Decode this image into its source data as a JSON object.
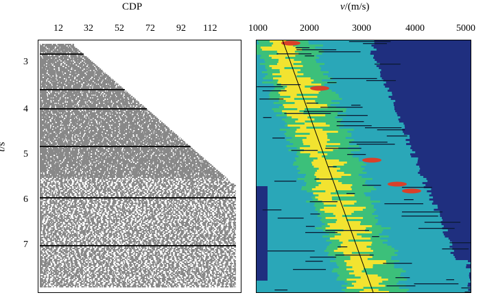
{
  "left_panel": {
    "title": "CDP",
    "x_ticks": [
      "12",
      "32",
      "52",
      "72",
      "92",
      "112"
    ],
    "y_label": {
      "italic": "t",
      "rest": "/s"
    },
    "y_ticks": [
      "3",
      "4",
      "5",
      "6",
      "7"
    ]
  },
  "right_panel": {
    "title": {
      "italic": "v",
      "rest": "/(m/s)"
    },
    "x_ticks": [
      "1000",
      "2000",
      "3000",
      "4000",
      "5000"
    ]
  },
  "colors": {
    "wiggle": "#111111",
    "background_velocity": "#1f2f7f",
    "low_semblance": "#2aa7b8",
    "mid_semblance": "#3cc07a",
    "high_semblance": "#f2e330",
    "peak_semblance": "#d9402a",
    "pick_line": "#000000"
  },
  "icons": {
    "left": "seismic-cmp-gather",
    "right": "velocity-semblance-spectrum"
  }
}
